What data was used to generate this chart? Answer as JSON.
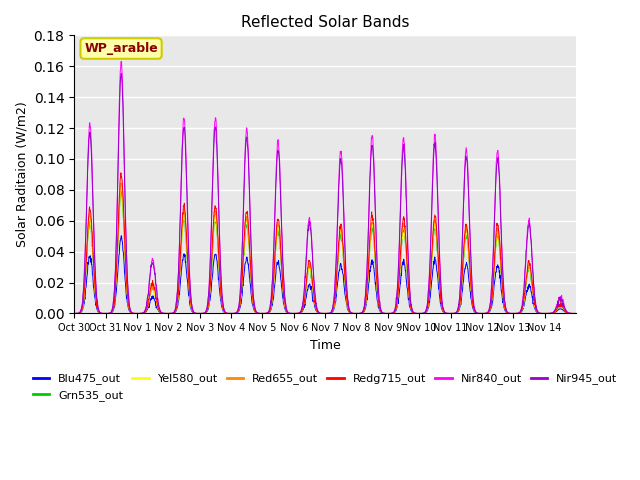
{
  "title": "Reflected Solar Bands",
  "xlabel": "Time",
  "ylabel": "Solar Raditaion (W/m2)",
  "annotation": "WP_arable",
  "annotation_color": "#8B0000",
  "annotation_bg": "#FFFFAA",
  "ylim": [
    0,
    0.18
  ],
  "background_color": "#E8E8E8",
  "axes_bg": "#E8E8E8",
  "grid_color": "white",
  "series": [
    {
      "name": "Blu475_out",
      "color": "#0000FF"
    },
    {
      "name": "Grn535_out",
      "color": "#00CC00"
    },
    {
      "name": "Yel580_out",
      "color": "#FFFF00"
    },
    {
      "name": "Red655_out",
      "color": "#FF8800"
    },
    {
      "name": "Redg715_out",
      "color": "#FF0000"
    },
    {
      "name": "Nir840_out",
      "color": "#FF00FF"
    },
    {
      "name": "Nir945_out",
      "color": "#9900CC"
    }
  ],
  "xtick_labels": [
    "Oct 30",
    "Oct 31",
    "Nov 1",
    "Nov 2",
    "Nov 3",
    "Nov 4",
    "Nov 5",
    "Nov 6",
    "Nov 7",
    "Nov 8",
    "Nov 9",
    "Nov 10",
    "Nov 11",
    "Nov 12",
    "Nov 13",
    "Nov 14"
  ],
  "num_days": 16,
  "points_per_day": 96
}
